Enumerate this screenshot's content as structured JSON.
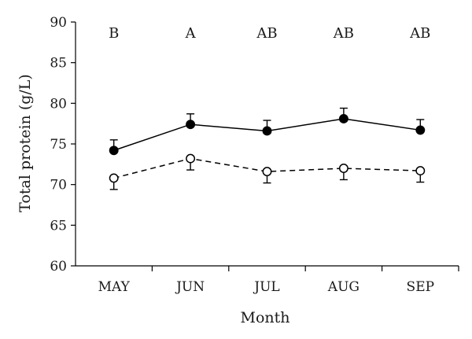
{
  "chart_data": {
    "type": "line",
    "xlabel": "Month",
    "ylabel": "Total protein (g/L)",
    "categories": [
      "MAY",
      "JUN",
      "JUL",
      "AUG",
      "SEP"
    ],
    "ylim": [
      60,
      90
    ],
    "yticks": [
      60,
      65,
      70,
      75,
      80,
      85,
      90
    ],
    "grid": false,
    "significance_labels": [
      "B",
      "A",
      "AB",
      "AB",
      "AB"
    ],
    "series": [
      {
        "marker": "filled-circle",
        "line_style": "solid",
        "color": "#000000",
        "values": [
          74.2,
          77.4,
          76.6,
          78.1,
          76.7
        ],
        "error": [
          1.3,
          1.3,
          1.3,
          1.3,
          1.3
        ]
      },
      {
        "marker": "open-circle",
        "line_style": "dashed",
        "color": "#000000",
        "values": [
          70.8,
          73.2,
          71.6,
          72.0,
          71.7
        ],
        "error": [
          1.4,
          1.4,
          1.4,
          1.4,
          1.4
        ]
      }
    ]
  }
}
